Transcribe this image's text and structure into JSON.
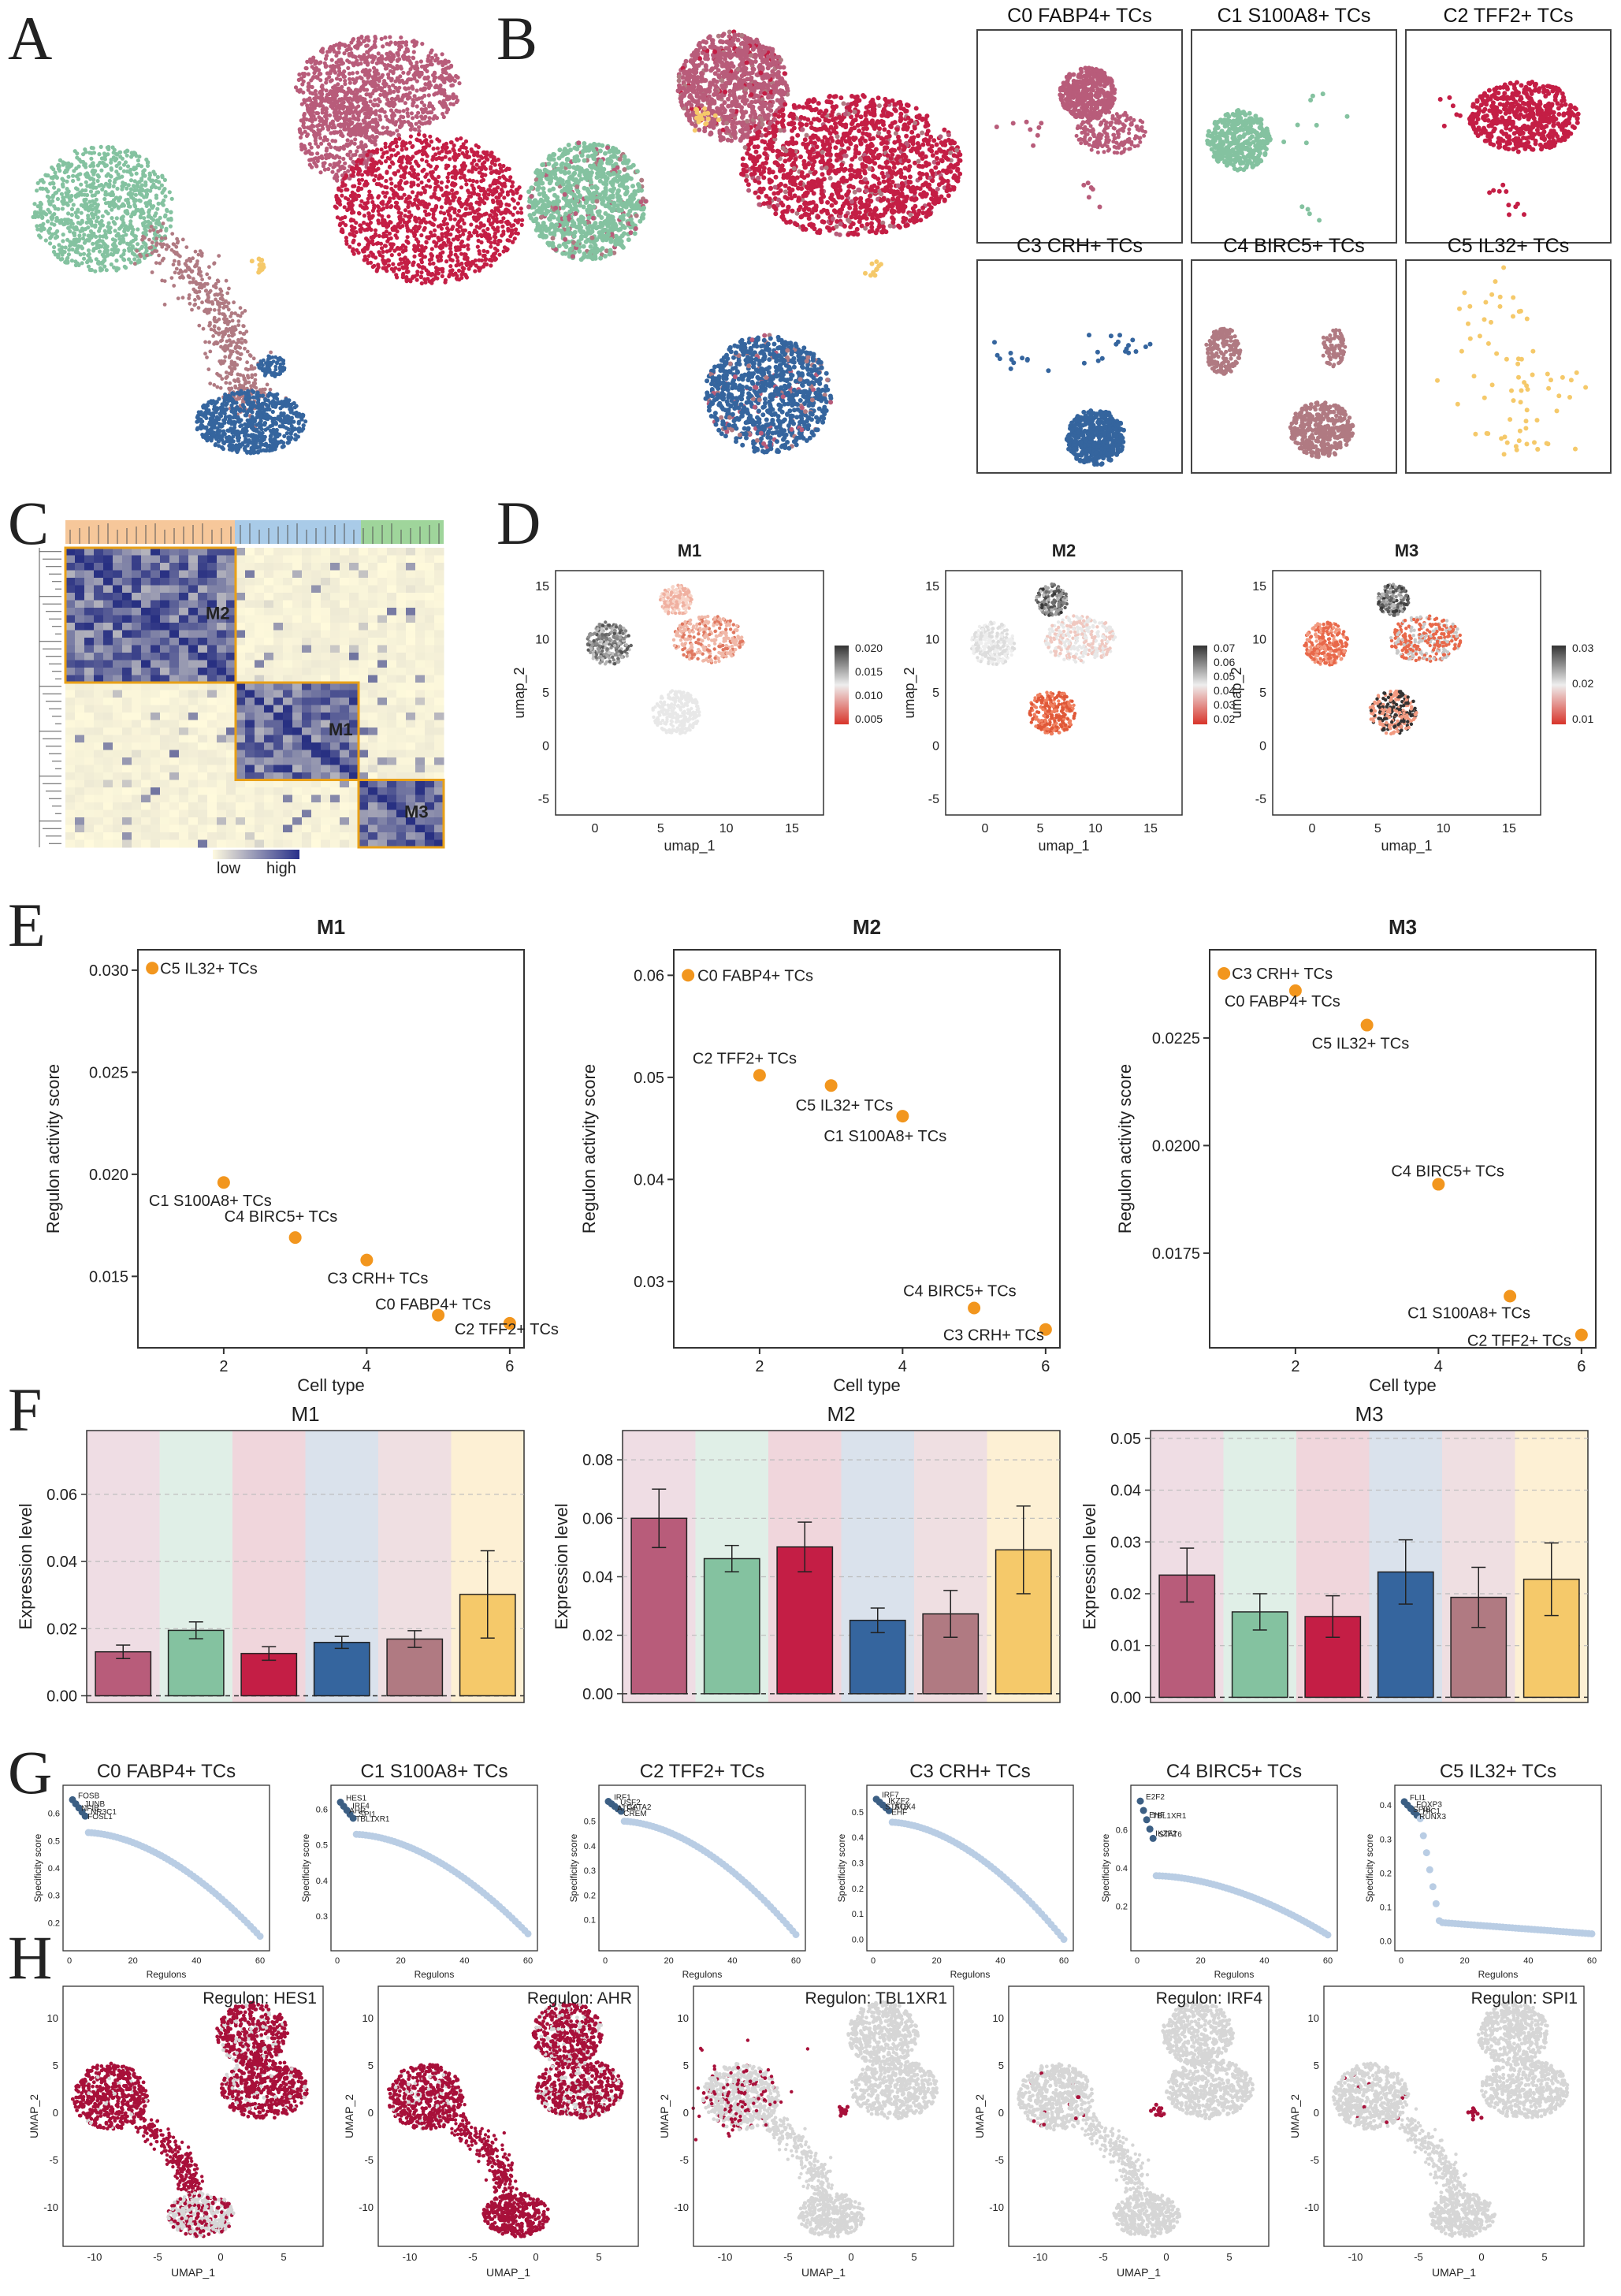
{
  "panel_letters": [
    "A",
    "B",
    "C",
    "D",
    "E",
    "F",
    "G",
    "H"
  ],
  "colors": {
    "C0": "#b85c7a",
    "C1": "#84c2a0",
    "C2": "#c41e45",
    "C3": "#35659e",
    "C4": "#b07a82",
    "C5": "#f5c96a",
    "highlight": "#e8a017",
    "regulon_red": "#a8103a",
    "point_orange": "#f2961e",
    "spec_light": "#b9cde4",
    "spec_dark": "#3c5f84"
  },
  "cluster_labels": [
    "C0 FABP4+ TCs",
    "C1 S100A8+ TCs",
    "C2 TFF2+ TCs",
    "C3 CRH+ TCs",
    "C4 BIRC5+ TCs",
    "C5 IL32+ TCs"
  ],
  "panelB": {
    "facet_titles": [
      "C0 FABP4+ TCs",
      "C1 S100A8+ TCs",
      "C2 TFF2+ TCs",
      "C3 CRH+ TCs",
      "C4 BIRC5+ TCs",
      "C5 IL32+ TCs"
    ],
    "facet_title_c1_visible": "C1 S100A8+ TCs"
  },
  "panelC": {
    "modules": [
      "M2",
      "M1",
      "M3"
    ],
    "legend_low": "low",
    "legend_high": "high"
  },
  "panelD": {
    "xlabel": "umap_1",
    "ylabel": "umap_2",
    "x_ticks": [
      "0",
      "5",
      "10",
      "15"
    ],
    "y_ticks": [
      "15",
      "10",
      "5",
      "0",
      "-5"
    ],
    "plots": [
      {
        "title": "M1",
        "legend": [
          "0.020",
          "0.015",
          "0.010",
          "0.005"
        ]
      },
      {
        "title": "M2",
        "legend": [
          "0.07",
          "0.06",
          "0.05",
          "0.04",
          "0.03",
          "0.02"
        ]
      },
      {
        "title": "M3",
        "legend": [
          "0.03",
          "0.02",
          "0.01"
        ]
      }
    ]
  },
  "chart_data": [
    {
      "panel": "E",
      "type": "scatter",
      "title": "M1",
      "xlabel": "Cell type",
      "ylabel": "Regulon activity score",
      "xlim": [
        0.8,
        6.2
      ],
      "ylim": [
        0.0115,
        0.031
      ],
      "x_ticks": [
        2,
        4,
        6
      ],
      "y_ticks": [
        0.015,
        0.02,
        0.025,
        0.03
      ],
      "y_tick_labels": [
        "0.015",
        "0.020",
        "0.025",
        "0.030"
      ],
      "points": [
        {
          "x": 1,
          "y": 0.0301,
          "label": "C5 IL32+ TCs"
        },
        {
          "x": 2,
          "y": 0.0196,
          "label": "C1 S100A8+ TCs"
        },
        {
          "x": 3,
          "y": 0.0169,
          "label": "C4 BIRC5+ TCs"
        },
        {
          "x": 4,
          "y": 0.0158,
          "label": "C3 CRH+ TCs"
        },
        {
          "x": 5,
          "y": 0.0131,
          "label": "C0 FABP4+ TCs"
        },
        {
          "x": 6,
          "y": 0.0127,
          "label": "C2 TFF2+ TCs"
        }
      ]
    },
    {
      "panel": "E",
      "type": "scatter",
      "title": "M2",
      "xlabel": "Cell type",
      "ylabel": "Regulon activity score",
      "xlim": [
        0.8,
        6.2
      ],
      "ylim": [
        0.0235,
        0.0625
      ],
      "x_ticks": [
        2,
        4,
        6
      ],
      "y_ticks": [
        0.03,
        0.04,
        0.05,
        0.06
      ],
      "y_tick_labels": [
        "0.03",
        "0.04",
        "0.05",
        "0.06"
      ],
      "points": [
        {
          "x": 1,
          "y": 0.06,
          "label": "C0 FABP4+ TCs"
        },
        {
          "x": 2,
          "y": 0.0502,
          "label": "C2 TFF2+ TCs"
        },
        {
          "x": 3,
          "y": 0.0492,
          "label": "C5 IL32+ TCs"
        },
        {
          "x": 4,
          "y": 0.0462,
          "label": "C1 S100A8+ TCs"
        },
        {
          "x": 5,
          "y": 0.0274,
          "label": "C4 BIRC5+ TCs"
        },
        {
          "x": 6,
          "y": 0.0253,
          "label": "C3 CRH+ TCs"
        }
      ]
    },
    {
      "panel": "E",
      "type": "scatter",
      "title": "M3",
      "xlabel": "Cell type",
      "ylabel": "Regulon activity score",
      "xlim": [
        0.8,
        6.2
      ],
      "ylim": [
        0.0153,
        0.02455
      ],
      "x_ticks": [
        2,
        4,
        6
      ],
      "y_ticks": [
        0.0175,
        0.02,
        0.0225
      ],
      "y_tick_labels": [
        "0.0175",
        "0.0200",
        "0.0225"
      ],
      "points": [
        {
          "x": 1,
          "y": 0.024,
          "label": "C3 CRH+ TCs"
        },
        {
          "x": 2,
          "y": 0.0236,
          "label": "C0 FABP4+ TCs"
        },
        {
          "x": 3,
          "y": 0.0228,
          "label": "C5 IL32+ TCs"
        },
        {
          "x": 4,
          "y": 0.0191,
          "label": "C4 BIRC5+ TCs"
        },
        {
          "x": 5,
          "y": 0.0165,
          "label": "C1 S100A8+ TCs"
        },
        {
          "x": 6,
          "y": 0.0156,
          "label": "C2 TFF2+ TCs"
        }
      ]
    },
    {
      "panel": "F",
      "type": "bar",
      "title": "M1",
      "ylabel": "Expression level",
      "ylim": [
        -0.002,
        0.079
      ],
      "y_ticks": [
        "0.00",
        "0.02",
        "0.04",
        "0.06"
      ],
      "values": [
        0.0131,
        0.0195,
        0.0126,
        0.0159,
        0.0169,
        0.0302
      ],
      "errors": [
        0.002,
        0.0025,
        0.002,
        0.0018,
        0.0025,
        0.013
      ]
    },
    {
      "panel": "F",
      "type": "bar",
      "title": "M2",
      "ylabel": "Expression level",
      "ylim": [
        -0.003,
        0.09
      ],
      "y_ticks": [
        "0.00",
        "0.02",
        "0.04",
        "0.06",
        "0.08"
      ],
      "values": [
        0.06,
        0.0462,
        0.0502,
        0.0251,
        0.0273,
        0.0492
      ],
      "errors": [
        0.01,
        0.0045,
        0.0085,
        0.0042,
        0.008,
        0.015
      ]
    },
    {
      "panel": "F",
      "type": "bar",
      "title": "M3",
      "ylabel": "Expression level",
      "ylim": [
        -0.001,
        0.0515
      ],
      "y_ticks": [
        "0.00",
        "0.01",
        "0.02",
        "0.03",
        "0.04",
        "0.05"
      ],
      "values": [
        0.0236,
        0.0165,
        0.0156,
        0.0242,
        0.0193,
        0.0228
      ],
      "errors": [
        0.0052,
        0.0035,
        0.004,
        0.0062,
        0.0058,
        0.007
      ]
    },
    {
      "panel": "G",
      "type": "scatter",
      "xlabel": "Regulons",
      "ylabel": "Specificity score",
      "subplots": [
        {
          "title": "C0 FABP4+ TCs",
          "top": 0.65,
          "mid": 0.53,
          "end": 0.15,
          "shape": "smooth",
          "y_ticks": [
            "0.6",
            "0.5",
            "0.4",
            "0.3",
            "0.2"
          ],
          "ylim": [
            0.12,
            0.68
          ],
          "genes": [
            "FOSB",
            "NFIB",
            "JUNB",
            "FOSL1",
            "NR3C1"
          ]
        },
        {
          "title": "C1 S100A8+ TCs",
          "top": 0.62,
          "mid": 0.53,
          "end": 0.25,
          "shape": "smooth",
          "y_ticks": [
            "0.6",
            "0.5",
            "0.4",
            "0.3"
          ],
          "ylim": [
            0.22,
            0.65
          ],
          "genes": [
            "HES1",
            "AHR",
            "IRF4",
            "TBL1XR1",
            "SPI1"
          ]
        },
        {
          "title": "C2 TFF2+ TCs",
          "top": 0.58,
          "mid": 0.5,
          "end": 0.04,
          "shape": "smooth",
          "y_ticks": [
            "0.5",
            "0.4",
            "0.3",
            "0.2",
            "0.1"
          ],
          "ylim": [
            0.0,
            0.62
          ],
          "genes": [
            "IRF1",
            "ATF4",
            "USF2",
            "CREM",
            "GATA2"
          ]
        },
        {
          "title": "C3 CRH+ TCs",
          "top": 0.55,
          "mid": 0.46,
          "end": 0.0,
          "shape": "smooth",
          "y_ticks": [
            "0.5",
            "0.4",
            "0.3",
            "0.2",
            "0.1",
            "0.0"
          ],
          "ylim": [
            -0.02,
            0.58
          ],
          "genes": [
            "IRF7",
            "STAT6",
            "IKZF2",
            "EHF",
            "SOX4"
          ]
        },
        {
          "title": "C4 BIRC5+ TCs",
          "top": 0.75,
          "mid": 0.36,
          "end": 0.05,
          "shape": "smooth",
          "y_ticks": [
            "0.6",
            "0.4",
            "0.2"
          ],
          "ylim": [
            0.0,
            0.8
          ],
          "genes": [
            "E2F2",
            "EHF",
            "TBL1XR1",
            "IKZF2",
            "STAT6"
          ]
        },
        {
          "title": "C5 IL32+ TCs",
          "top": 0.41,
          "mid": 0.38,
          "end": 0.02,
          "shape": "drop",
          "y_ticks": [
            "0.4",
            "0.3",
            "0.2",
            "0.1",
            "0.0"
          ],
          "ylim": [
            -0.01,
            0.44
          ],
          "genes": [
            "FLI1",
            "SPIB",
            "FOXP3",
            "RUNX3",
            "HIC1"
          ]
        }
      ],
      "x_ticks": [
        "0",
        "20",
        "40",
        "60"
      ]
    }
  ],
  "panelH": {
    "xlabel": "UMAP_1",
    "ylabel": "UMAP_2",
    "x_ticks": [
      "-10",
      "-5",
      "0",
      "5"
    ],
    "y_ticks": [
      "10",
      "5",
      "0",
      "-5",
      "-10"
    ],
    "plots": [
      {
        "title": "Regulon: HES1"
      },
      {
        "title": "Regulon: AHR"
      },
      {
        "title": "Regulon: TBL1XR1"
      },
      {
        "title": "Regulon: IRF4"
      },
      {
        "title": "Regulon: SPI1"
      }
    ]
  }
}
